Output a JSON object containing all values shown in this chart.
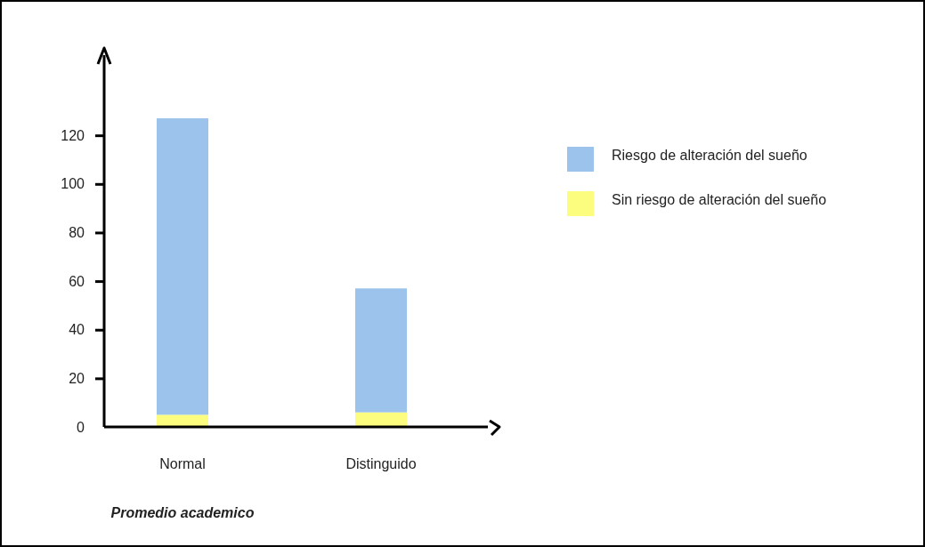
{
  "chart_data": {
    "type": "bar",
    "stacked": true,
    "xlabel": "Promedio academico",
    "categories": [
      "Normal",
      "Distinguido"
    ],
    "ylim": [
      0,
      153
    ],
    "yticks": [
      0,
      20,
      40,
      60,
      80,
      100,
      120
    ],
    "legend": "right",
    "grid": false,
    "series": [
      {
        "name": "Sin riesgo de alteración del sueño",
        "color": "#fcfc7e",
        "values": [
          5,
          6
        ]
      },
      {
        "name": "Riesgo de alteración del sueño",
        "color": "#9cc3ec",
        "values": [
          122,
          51
        ]
      }
    ]
  }
}
